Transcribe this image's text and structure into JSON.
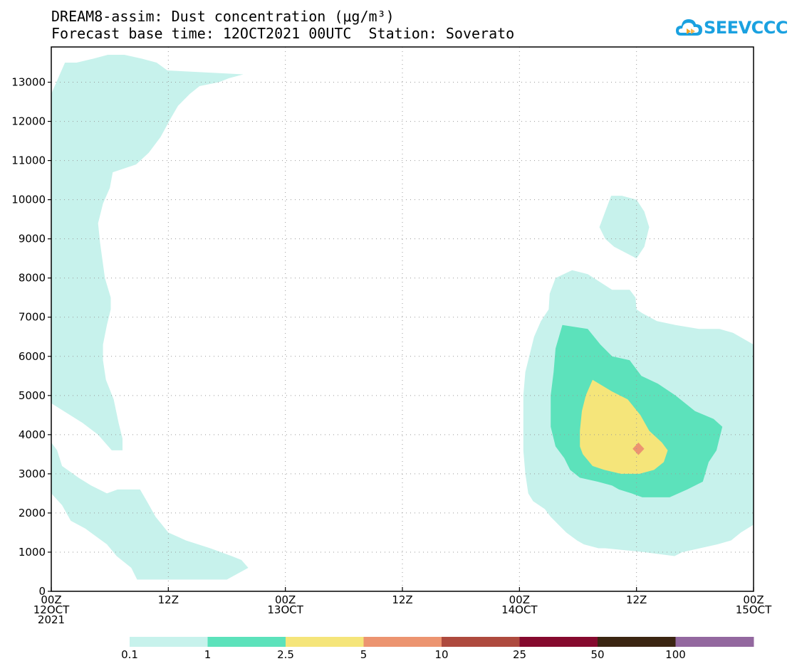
{
  "header": {
    "title_line1": "DREAM8-assim: Dust concentration (μg/m³)",
    "title_line2": "Forecast base time: 12OCT2021 00UTC  Station: Soverato"
  },
  "logo": {
    "text": "SEEVCCC",
    "icon": "cloud-icon"
  },
  "chart_data": {
    "type": "area",
    "title": "DREAM8-assim: Dust concentration (μg/m³)",
    "subtitle": "Forecast base time: 12OCT2021 00UTC  Station: Soverato",
    "xlabel": "",
    "ylabel": "",
    "xlim": [
      0,
      72
    ],
    "ylim": [
      0,
      13900
    ],
    "grid": true,
    "y_ticks": [
      0,
      1000,
      2000,
      3000,
      4000,
      5000,
      6000,
      7000,
      8000,
      9000,
      10000,
      11000,
      12000,
      13000
    ],
    "x_ticks": [
      {
        "hour": 0,
        "line1": "00Z",
        "line2": "12OCT",
        "line3": "2021"
      },
      {
        "hour": 12,
        "line1": "12Z"
      },
      {
        "hour": 24,
        "line1": "00Z",
        "line2": "13OCT"
      },
      {
        "hour": 36,
        "line1": "12Z"
      },
      {
        "hour": 48,
        "line1": "00Z",
        "line2": "14OCT"
      },
      {
        "hour": 60,
        "line1": "12Z"
      },
      {
        "hour": 72,
        "line1": "00Z",
        "line2": "15OCT"
      }
    ],
    "levels": [
      {
        "min": "0.1",
        "max": "1",
        "color": "#c7f2ec"
      },
      {
        "min": "1",
        "max": "2.5",
        "color": "#5ce2bb"
      },
      {
        "min": "2.5",
        "max": "5",
        "color": "#f5e57a"
      },
      {
        "min": "5",
        "max": "10",
        "color": "#ec9470"
      },
      {
        "min": "10",
        "max": "25",
        "color": "#ae4a3e"
      },
      {
        "min": "25",
        "max": "50",
        "color": "#850a2e"
      },
      {
        "min": "50",
        "max": "100",
        "color": "#3b2512"
      },
      {
        "min": "100",
        "max": "",
        "color": "#93689f"
      }
    ],
    "legend_labels": [
      "0.1",
      "1",
      "2.5",
      "5",
      "10",
      "25",
      "50",
      "100"
    ],
    "contours": [
      {
        "level": "0.1-1",
        "color": "#c7f2ec",
        "points": [
          [
            0,
            12700
          ],
          [
            0.7,
            13100
          ],
          [
            1.4,
            13500
          ],
          [
            2.6,
            13500
          ],
          [
            4.3,
            13600
          ],
          [
            5.8,
            13700
          ],
          [
            7.5,
            13700
          ],
          [
            9.3,
            13600
          ],
          [
            10.8,
            13500
          ],
          [
            11.9,
            13300
          ],
          [
            19.7,
            13200
          ],
          [
            18.2,
            13100
          ],
          [
            17.2,
            13000
          ],
          [
            15.2,
            12900
          ],
          [
            14.2,
            12700
          ],
          [
            13.0,
            12400
          ],
          [
            12.3,
            12100
          ],
          [
            11.2,
            11600
          ],
          [
            10.0,
            11200
          ],
          [
            8.7,
            10900
          ],
          [
            6.3,
            10700
          ],
          [
            6.0,
            10300
          ],
          [
            5.3,
            9900
          ],
          [
            4.8,
            9400
          ],
          [
            5.0,
            8900
          ],
          [
            5.5,
            8000
          ],
          [
            6.1,
            7500
          ],
          [
            6.1,
            7200
          ],
          [
            5.7,
            6800
          ],
          [
            5.3,
            6300
          ],
          [
            5.3,
            5900
          ],
          [
            5.6,
            5400
          ],
          [
            6.4,
            4900
          ],
          [
            6.9,
            4300
          ],
          [
            7.3,
            3900
          ],
          [
            7.3,
            3600
          ],
          [
            6.2,
            3600
          ],
          [
            4.8,
            4000
          ],
          [
            3.2,
            4300
          ],
          [
            0,
            4800
          ]
        ]
      },
      {
        "level": "0.1-1",
        "color": "#c7f2ec",
        "points": [
          [
            0,
            3800
          ],
          [
            0.6,
            3600
          ],
          [
            1.1,
            3200
          ],
          [
            2.8,
            2900
          ],
          [
            4.1,
            2700
          ],
          [
            5.7,
            2500
          ],
          [
            6.8,
            2600
          ],
          [
            9.1,
            2600
          ],
          [
            9.8,
            2300
          ],
          [
            10.7,
            1900
          ],
          [
            12.0,
            1500
          ],
          [
            13.8,
            1300
          ],
          [
            16.3,
            1100
          ],
          [
            18.5,
            900
          ],
          [
            19.5,
            800
          ],
          [
            20.2,
            600
          ],
          [
            18.0,
            300
          ],
          [
            12.7,
            300
          ],
          [
            8.8,
            300
          ],
          [
            8.2,
            600
          ],
          [
            6.7,
            900
          ],
          [
            5.7,
            1200
          ],
          [
            3.5,
            1600
          ],
          [
            2.0,
            1800
          ],
          [
            1.1,
            2200
          ],
          [
            0,
            2500
          ]
        ]
      },
      {
        "level": "0.1-1",
        "color": "#c7f2ec",
        "points": [
          [
            56.2,
            9300
          ],
          [
            56.8,
            9700
          ],
          [
            57.4,
            10100
          ],
          [
            58.5,
            10100
          ],
          [
            60.0,
            10000
          ],
          [
            60.8,
            9700
          ],
          [
            61.3,
            9300
          ],
          [
            60.8,
            8800
          ],
          [
            60.0,
            8500
          ],
          [
            57.7,
            8800
          ],
          [
            56.8,
            9000
          ]
        ]
      },
      {
        "level": "0.1-1",
        "color": "#c7f2ec",
        "points": [
          [
            48.4,
            5000
          ],
          [
            48.6,
            5600
          ],
          [
            49.5,
            6500
          ],
          [
            50.2,
            6900
          ],
          [
            51.0,
            7200
          ],
          [
            51.1,
            7600
          ],
          [
            51.7,
            8000
          ],
          [
            53.4,
            8200
          ],
          [
            55.0,
            8100
          ],
          [
            57.5,
            7700
          ],
          [
            59.3,
            7700
          ],
          [
            59.9,
            7500
          ],
          [
            60.0,
            7200
          ],
          [
            60.6,
            7100
          ],
          [
            62.1,
            6900
          ],
          [
            64.0,
            6800
          ],
          [
            66.4,
            6700
          ],
          [
            68.5,
            6700
          ],
          [
            69.9,
            6600
          ],
          [
            72,
            6300
          ],
          [
            72,
            1700
          ],
          [
            70.7,
            1500
          ],
          [
            69.7,
            1300
          ],
          [
            68.3,
            1200
          ],
          [
            66.5,
            1100
          ],
          [
            64.7,
            1000
          ],
          [
            63.9,
            900
          ],
          [
            60.8,
            1000
          ],
          [
            56.8,
            1100
          ],
          [
            56.1,
            1100
          ],
          [
            54.6,
            1200
          ],
          [
            53.9,
            1300
          ],
          [
            52.8,
            1500
          ],
          [
            52.0,
            1700
          ],
          [
            51.2,
            1900
          ],
          [
            50.6,
            2100
          ],
          [
            49.4,
            2300
          ],
          [
            48.9,
            2500
          ],
          [
            48.6,
            3000
          ],
          [
            48.4,
            3600
          ],
          [
            48.4,
            4500
          ]
        ]
      },
      {
        "level": "1-2.5",
        "color": "#5ce2bb",
        "points": [
          [
            51.2,
            5000
          ],
          [
            51.5,
            5600
          ],
          [
            51.7,
            6200
          ],
          [
            52.4,
            6800
          ],
          [
            55.0,
            6700
          ],
          [
            56.3,
            6300
          ],
          [
            57.5,
            6000
          ],
          [
            59.3,
            5900
          ],
          [
            60.5,
            5500
          ],
          [
            62.2,
            5300
          ],
          [
            64.0,
            5000
          ],
          [
            66.0,
            4600
          ],
          [
            67.9,
            4400
          ],
          [
            68.8,
            4200
          ],
          [
            68.2,
            3600
          ],
          [
            67.4,
            3300
          ],
          [
            66.8,
            2800
          ],
          [
            65.2,
            2600
          ],
          [
            63.4,
            2400
          ],
          [
            62.1,
            2400
          ],
          [
            60.6,
            2400
          ],
          [
            59.5,
            2500
          ],
          [
            58.2,
            2600
          ],
          [
            57.5,
            2700
          ],
          [
            56.0,
            2800
          ],
          [
            54.2,
            2900
          ],
          [
            53.2,
            3100
          ],
          [
            52.6,
            3400
          ],
          [
            51.7,
            3700
          ],
          [
            51.2,
            4200
          ]
        ]
      },
      {
        "level": "2.5-5",
        "color": "#f5e57a",
        "points": [
          [
            54.2,
            3700
          ],
          [
            54.2,
            4100
          ],
          [
            54.4,
            4600
          ],
          [
            54.8,
            5000
          ],
          [
            55.5,
            5400
          ],
          [
            57.5,
            5100
          ],
          [
            59.1,
            4900
          ],
          [
            60.4,
            4500
          ],
          [
            61.3,
            4100
          ],
          [
            62.6,
            3800
          ],
          [
            63.2,
            3600
          ],
          [
            62.8,
            3300
          ],
          [
            61.8,
            3100
          ],
          [
            60.3,
            3000
          ],
          [
            58.4,
            3000
          ],
          [
            56.7,
            3100
          ],
          [
            55.5,
            3200
          ],
          [
            54.5,
            3500
          ]
        ]
      },
      {
        "level": "5-10",
        "color": "#ec9470",
        "points": [
          [
            59.6,
            3640
          ],
          [
            60.2,
            3800
          ],
          [
            60.8,
            3640
          ],
          [
            60.2,
            3480
          ]
        ]
      }
    ]
  }
}
